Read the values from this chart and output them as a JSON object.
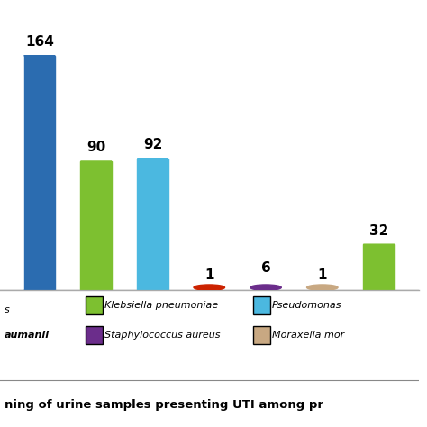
{
  "values": [
    164,
    90,
    92,
    1,
    6,
    1,
    32
  ],
  "bar_colors": [
    "#2B6CB0",
    "#7DC030",
    "#4BB8E0",
    "#CC2200",
    "#6B2D8B",
    "#C8A882",
    "#7DC030"
  ],
  "bar_labels": [
    "164",
    "90",
    "92",
    "1",
    "6",
    "1",
    "32"
  ],
  "legend_entries": [
    {
      "label": "Klebsiella pneumoniae",
      "color": "#7DC030"
    },
    {
      "label": "Pseudomonas",
      "color": "#4BB8E0"
    },
    {
      "label": "Staphylococcus aureus",
      "color": "#6B2D8B"
    },
    {
      "label": "Moraxella mor",
      "color": "#C8A882"
    }
  ],
  "left_text_line1": "s",
  "left_text_line2": "aumanii",
  "bottom_text": "ning of urine samples presenting UTI among pr",
  "ylim": [
    0,
    185
  ],
  "background_color": "#ffffff"
}
